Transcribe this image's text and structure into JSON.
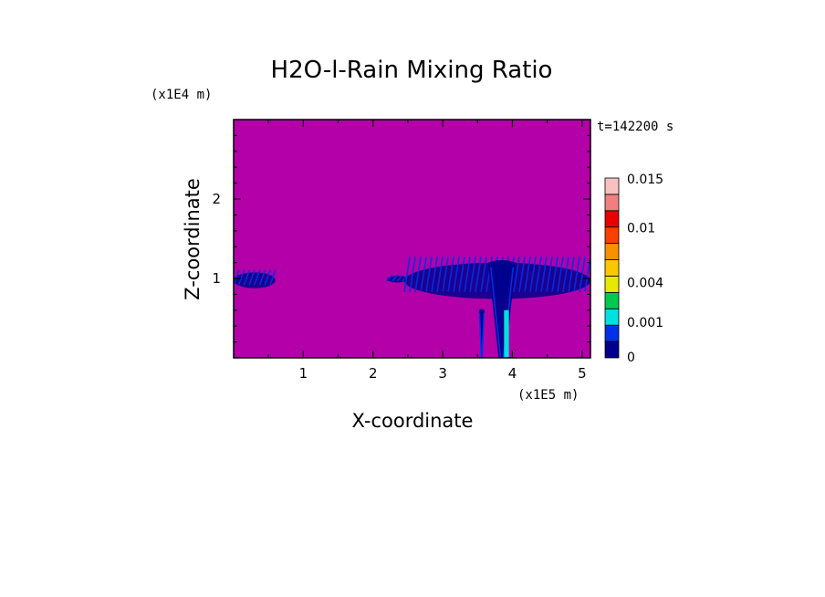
{
  "chart_data": {
    "type": "heatmap",
    "title": "H2O-l-Rain Mixing Ratio",
    "xlabel": "X-coordinate",
    "ylabel": "Z-coordinate",
    "x_scale_label": "(x1E5 m)",
    "y_scale_label": "(x1E4 m)",
    "time_label": "t=142200 s",
    "xlim": [
      0,
      5.12
    ],
    "ylim": [
      0,
      3.0
    ],
    "x_ticks": [
      1,
      2,
      3,
      4,
      5
    ],
    "x_tick_labels": [
      "1",
      "2",
      "3",
      "4",
      "5"
    ],
    "y_ticks": [
      1,
      2
    ],
    "y_tick_labels": [
      "1",
      "2"
    ],
    "background_color": "#b400a8",
    "colorbar": {
      "levels": [
        {
          "value": 0.0,
          "color": "#00008c"
        },
        {
          "value": 0.0005,
          "color": "#0030e8"
        },
        {
          "value": 0.001,
          "color": "#00e0e0"
        },
        {
          "value": 0.0015,
          "color": "#00c850"
        },
        {
          "value": 0.004,
          "color": "#e8e800"
        },
        {
          "value": 0.006,
          "color": "#f8c800"
        },
        {
          "value": 0.008,
          "color": "#f89000"
        },
        {
          "value": 0.01,
          "color": "#f84000"
        },
        {
          "value": 0.011,
          "color": "#e80000"
        },
        {
          "value": 0.013,
          "color": "#f08080"
        },
        {
          "value": 0.015,
          "color": "#f8c0c0"
        }
      ],
      "tick_values": [
        0,
        0.001,
        0.004,
        0.01,
        0.015
      ],
      "tick_labels": [
        "0",
        "0.001",
        "0.004",
        "0.01",
        "0.015"
      ]
    },
    "regions": [
      {
        "kind": "cloud_layer",
        "x": [
          0.0,
          0.6
        ],
        "z": [
          0.88,
          1.12
        ],
        "value": 0.0005
      },
      {
        "kind": "cloud_layer",
        "x": [
          2.2,
          2.5
        ],
        "z": [
          0.95,
          1.05
        ],
        "value": 0.0005
      },
      {
        "kind": "cloud_layer",
        "x": [
          2.45,
          5.12
        ],
        "z": [
          0.75,
          1.3
        ],
        "value": 0.0005
      },
      {
        "kind": "rain_shaft",
        "x": [
          3.65,
          4.05
        ],
        "z": [
          0.0,
          1.2
        ],
        "value": 0.0005
      },
      {
        "kind": "rain_shaft",
        "x": [
          3.52,
          3.6
        ],
        "z": [
          0.0,
          0.6
        ],
        "value": 0.0005
      },
      {
        "kind": "peak",
        "x": [
          3.88,
          3.95
        ],
        "z": [
          0.0,
          0.6
        ],
        "value": 0.001
      }
    ]
  }
}
